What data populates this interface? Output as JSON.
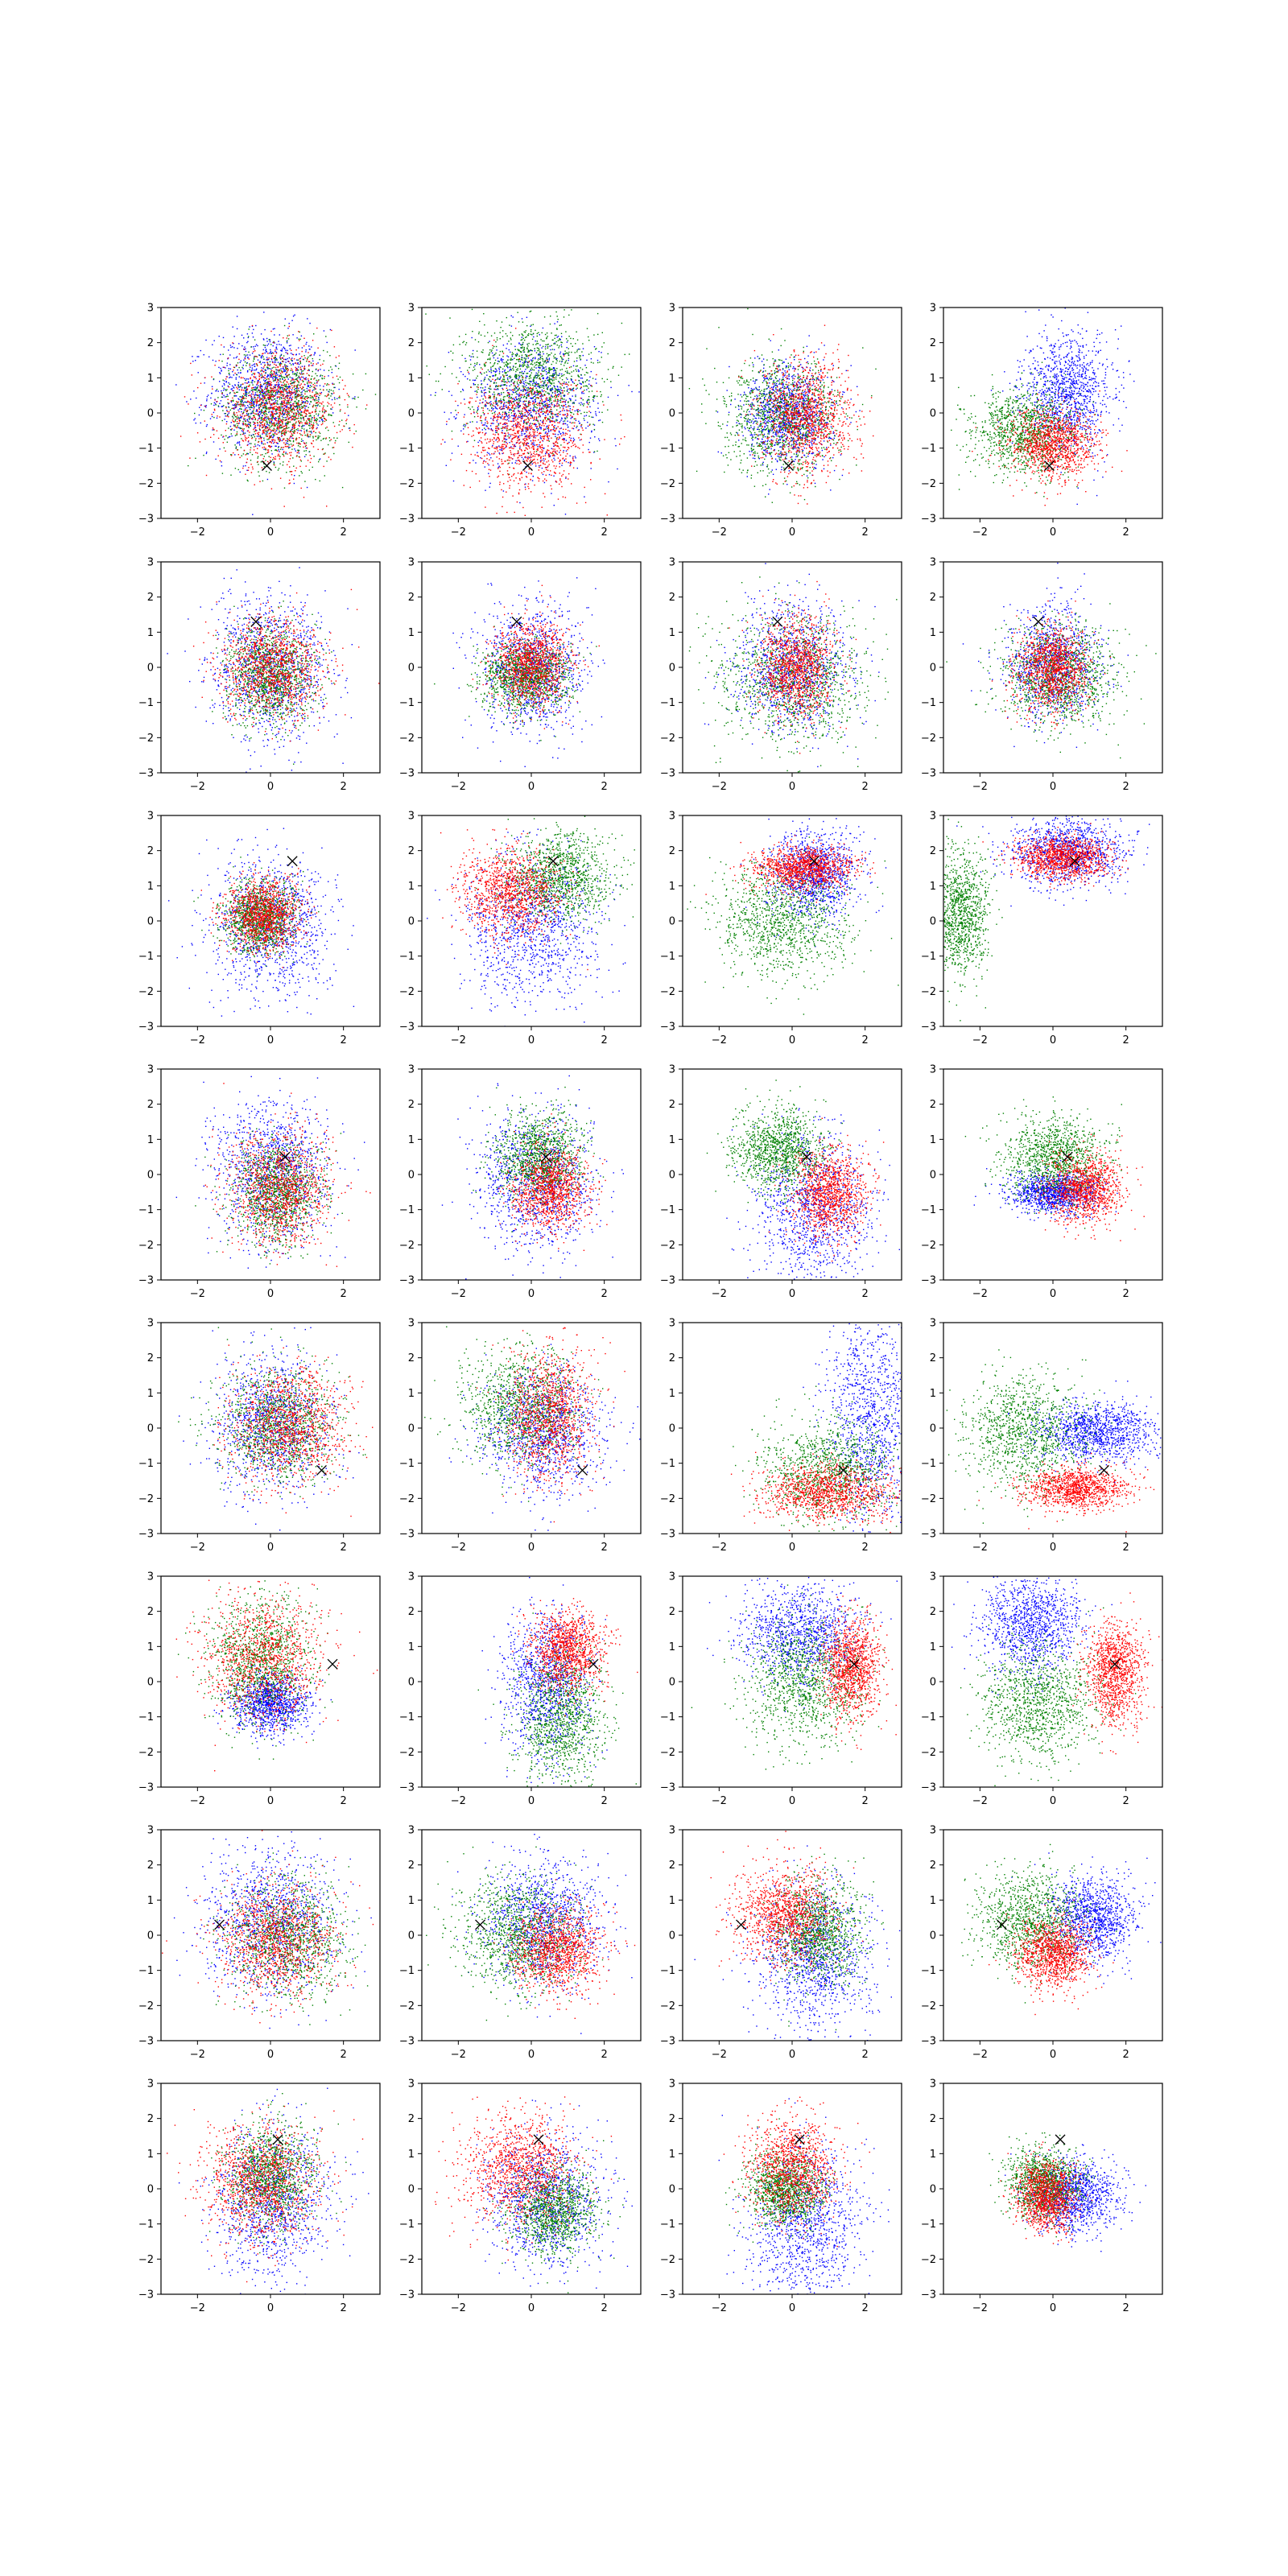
{
  "figure": {
    "rows": 8,
    "cols": 4,
    "background": "#ffffff"
  },
  "chart_data": {
    "type": "scatter",
    "title": "",
    "xlabel": "",
    "ylabel": "",
    "xlim": [
      -3,
      3
    ],
    "ylim": [
      -3,
      3
    ],
    "x_ticks": [
      -2,
      0,
      2
    ],
    "x_tick_labels": [
      "−2",
      "0",
      "2"
    ],
    "y_ticks": [
      -3,
      -2,
      -1,
      0,
      1,
      2,
      3
    ],
    "y_tick_labels": [
      "−3",
      "−2",
      "−1",
      "0",
      "1",
      "2",
      "3"
    ],
    "grid": false,
    "legend": "none",
    "series_colors": {
      "red": "#ff0000",
      "green": "#008000",
      "blue": "#0000ff"
    },
    "marker": {
      "symbol": "x",
      "color": "#000000"
    },
    "points_per_series": 1100,
    "rows": [
      {
        "marker": [
          -0.1,
          -1.5
        ],
        "panels": [
          {
            "blue": [
              -0.1,
              0.6,
              0.8,
              0.9
            ],
            "red": [
              0.2,
              0.1,
              0.8,
              0.8
            ],
            "green": [
              0.3,
              0.2,
              0.8,
              0.8
            ]
          },
          {
            "green": [
              0.0,
              1.1,
              0.9,
              0.8
            ],
            "red": [
              -0.1,
              -0.6,
              0.8,
              0.8
            ],
            "blue": [
              0.0,
              0.3,
              0.9,
              0.9
            ]
          },
          {
            "red": [
              0.4,
              -0.1,
              0.6,
              0.8
            ],
            "blue": [
              -0.1,
              0.0,
              0.6,
              0.7
            ],
            "green": [
              -0.3,
              -0.1,
              0.8,
              0.8
            ]
          },
          {
            "blue": [
              0.4,
              0.6,
              0.6,
              0.8
            ],
            "red": [
              0.0,
              -0.9,
              0.6,
              0.5
            ],
            "green": [
              -0.8,
              -0.5,
              0.7,
              0.6
            ]
          }
        ]
      },
      {
        "marker": [
          -0.4,
          1.3
        ],
        "panels": [
          {
            "blue": [
              0.0,
              0.0,
              0.8,
              1.0
            ],
            "red": [
              0.0,
              0.0,
              0.7,
              0.7
            ],
            "green": [
              0.0,
              -0.2,
              0.6,
              0.7
            ]
          },
          {
            "blue": [
              0.0,
              0.0,
              0.7,
              0.9
            ],
            "red": [
              0.0,
              0.1,
              0.5,
              0.6
            ],
            "green": [
              -0.2,
              -0.3,
              0.6,
              0.5
            ]
          },
          {
            "green": [
              0.0,
              -0.3,
              1.0,
              0.9
            ],
            "blue": [
              0.0,
              0.0,
              0.8,
              0.9
            ],
            "red": [
              0.1,
              0.0,
              0.5,
              0.7
            ]
          },
          {
            "green": [
              0.2,
              -0.3,
              0.8,
              0.7
            ],
            "blue": [
              0.0,
              0.1,
              0.6,
              0.8
            ],
            "red": [
              0.0,
              0.0,
              0.5,
              0.6
            ]
          }
        ]
      },
      {
        "marker": [
          0.6,
          1.7
        ],
        "panels": [
          {
            "blue": [
              0.0,
              -0.1,
              0.8,
              1.0
            ],
            "red": [
              -0.2,
              0.2,
              0.5,
              0.5
            ],
            "green": [
              -0.3,
              0.1,
              0.5,
              0.5
            ]
          },
          {
            "blue": [
              0.0,
              -0.1,
              0.9,
              1.0
            ],
            "red": [
              -0.6,
              0.8,
              0.7,
              0.6
            ],
            "green": [
              0.8,
              1.3,
              0.7,
              0.6
            ]
          },
          {
            "green": [
              -0.3,
              0.0,
              0.9,
              0.8
            ],
            "blue": [
              0.6,
              1.3,
              0.6,
              0.6
            ],
            "red": [
              0.3,
              1.5,
              0.7,
              0.3
            ]
          },
          {
            "green": [
              -2.6,
              0.2,
              0.4,
              0.9
            ],
            "blue": [
              0.4,
              2.0,
              0.8,
              0.5
            ],
            "red": [
              0.3,
              1.8,
              0.6,
              0.3
            ]
          }
        ]
      },
      {
        "marker": [
          0.4,
          0.5
        ],
        "panels": [
          {
            "blue": [
              0.0,
              0.1,
              0.8,
              1.0
            ],
            "red": [
              0.2,
              -0.4,
              0.7,
              0.8
            ],
            "green": [
              0.2,
              -0.5,
              0.6,
              0.7
            ]
          },
          {
            "blue": [
              0.1,
              -0.2,
              0.8,
              1.0
            ],
            "green": [
              0.2,
              0.5,
              0.6,
              0.6
            ],
            "red": [
              0.5,
              -0.4,
              0.5,
              0.6
            ]
          },
          {
            "blue": [
              0.6,
              -1.0,
              0.8,
              1.1
            ],
            "green": [
              -0.4,
              0.7,
              0.6,
              0.6
            ],
            "red": [
              1.0,
              -0.5,
              0.5,
              0.6
            ]
          },
          {
            "green": [
              0.0,
              0.5,
              0.7,
              0.6
            ],
            "blue": [
              0.0,
              -0.5,
              0.6,
              0.3
            ],
            "red": [
              0.9,
              -0.4,
              0.5,
              0.5
            ]
          }
        ]
      },
      {
        "marker": [
          1.4,
          -1.2
        ],
        "panels": [
          {
            "blue": [
              0.0,
              0.2,
              0.8,
              1.0
            ],
            "red": [
              0.5,
              0.1,
              0.8,
              0.8
            ],
            "green": [
              0.2,
              0.1,
              0.8,
              0.8
            ]
          },
          {
            "green": [
              -0.3,
              0.6,
              0.8,
              0.8
            ],
            "blue": [
              0.3,
              0.0,
              0.8,
              0.9
            ],
            "red": [
              0.5,
              0.4,
              0.6,
              0.9
            ]
          },
          {
            "blue": [
              2.1,
              0.3,
              0.6,
              1.6
            ],
            "red": [
              1.0,
              -1.8,
              0.9,
              0.4
            ],
            "green": [
              1.0,
              -1.2,
              0.9,
              0.7
            ]
          },
          {
            "green": [
              -0.8,
              -0.1,
              0.8,
              0.8
            ],
            "blue": [
              1.2,
              -0.1,
              0.8,
              0.4
            ],
            "red": [
              0.6,
              -1.7,
              0.7,
              0.3
            ]
          }
        ]
      },
      {
        "marker": [
          1.7,
          0.5
        ],
        "panels": [
          {
            "blue": [
              0.0,
              -0.6,
              0.5,
              0.4
            ],
            "red": [
              -0.2,
              0.7,
              0.8,
              0.9
            ],
            "green": [
              -0.3,
              0.6,
              0.7,
              0.9
            ]
          },
          {
            "green": [
              0.8,
              -1.0,
              0.6,
              0.9
            ],
            "blue": [
              0.4,
              0.0,
              0.6,
              1.0
            ],
            "red": [
              1.0,
              0.9,
              0.5,
              0.6
            ]
          },
          {
            "blue": [
              0.2,
              1.4,
              0.8,
              0.7
            ],
            "red": [
              1.6,
              0.4,
              0.4,
              0.7
            ],
            "green": [
              0.3,
              0.0,
              0.8,
              0.9
            ]
          },
          {
            "blue": [
              -0.6,
              1.7,
              0.7,
              0.7
            ],
            "red": [
              1.7,
              0.3,
              0.4,
              0.7
            ],
            "green": [
              -0.4,
              -0.6,
              0.8,
              0.8
            ]
          }
        ]
      },
      {
        "marker": [
          -1.4,
          0.3
        ],
        "panels": [
          {
            "blue": [
              0.0,
              0.4,
              0.9,
              1.0
            ],
            "red": [
              0.2,
              -0.1,
              0.8,
              0.8
            ],
            "green": [
              0.5,
              -0.1,
              0.8,
              0.8
            ]
          },
          {
            "blue": [
              0.3,
              0.4,
              0.8,
              0.9
            ],
            "green": [
              -0.3,
              0.1,
              0.8,
              0.8
            ],
            "red": [
              0.7,
              -0.4,
              0.6,
              0.6
            ]
          },
          {
            "blue": [
              0.6,
              -0.6,
              0.8,
              1.0
            ],
            "red": [
              -0.2,
              0.6,
              0.7,
              0.7
            ],
            "green": [
              0.7,
              0.1,
              0.6,
              0.7
            ]
          },
          {
            "blue": [
              1.1,
              0.5,
              0.6,
              0.6
            ],
            "green": [
              -0.6,
              0.4,
              0.7,
              0.7
            ],
            "red": [
              0.0,
              -0.5,
              0.5,
              0.5
            ]
          }
        ]
      },
      {
        "marker": [
          0.2,
          1.4
        ],
        "panels": [
          {
            "blue": [
              0.0,
              -0.3,
              0.8,
              1.1
            ],
            "red": [
              -0.3,
              0.2,
              0.8,
              0.8
            ],
            "green": [
              0.0,
              0.4,
              0.6,
              0.7
            ]
          },
          {
            "red": [
              -0.3,
              0.6,
              0.8,
              0.8
            ],
            "blue": [
              0.4,
              -0.3,
              0.8,
              0.9
            ],
            "green": [
              0.6,
              -0.6,
              0.6,
              0.6
            ]
          },
          {
            "blue": [
              0.3,
              -1.0,
              0.8,
              1.1
            ],
            "red": [
              0.0,
              0.6,
              0.6,
              0.7
            ],
            "green": [
              -0.2,
              0.0,
              0.5,
              0.5
            ]
          },
          {
            "blue": [
              0.6,
              -0.2,
              0.6,
              0.5
            ],
            "green": [
              -0.3,
              0.2,
              0.5,
              0.5
            ],
            "red": [
              -0.2,
              -0.2,
              0.4,
              0.5
            ]
          }
        ]
      }
    ]
  }
}
